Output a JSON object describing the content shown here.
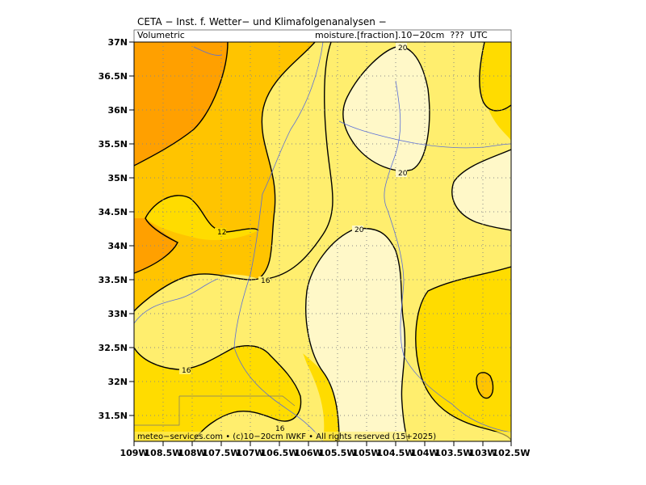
{
  "header": {
    "title": "CETA − Inst. f. Wetter− und Klimafolgenanalysen −",
    "left_label": "Volumetric",
    "right_label": "moisture.[fraction].10−20cm  ???  UTC"
  },
  "footer": {
    "text": "meteo−services.com  •  (c)10−20cm IWKF  •  All rights reserved  (15+2025)"
  },
  "axes": {
    "x_ticks": [
      "109W",
      "108.5W",
      "108W",
      "107.5W",
      "107W",
      "106.5W",
      "106W",
      "105.5W",
      "105W",
      "104.5W",
      "104W",
      "103.5W",
      "103W",
      "102.5W"
    ],
    "y_ticks": [
      "37N",
      "36.5N",
      "36N",
      "35.5N",
      "35N",
      "34.5N",
      "34N",
      "33.5N",
      "33N",
      "32.5N",
      "32N",
      "31.5N"
    ]
  },
  "legend_colors": {
    "lt10": "#ffa000",
    "10to12": "#ffc400",
    "12to16": "#ffdc00",
    "16to20": "#ffee6e",
    "gt20": "#fff8c8"
  },
  "contour_labels": [
    {
      "text": "20",
      "id": "c20-top"
    },
    {
      "text": "20",
      "id": "c20-mid"
    },
    {
      "text": "20",
      "id": "c20-center"
    },
    {
      "text": "12",
      "id": "c12"
    },
    {
      "text": "16",
      "id": "c16-a"
    },
    {
      "text": "16",
      "id": "c16-b"
    },
    {
      "text": "16",
      "id": "c16-c"
    }
  ]
}
